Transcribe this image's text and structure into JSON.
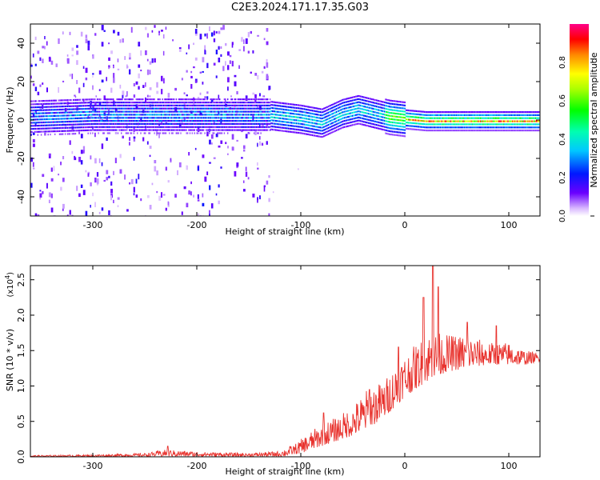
{
  "title": "C2E3.2024.171.17.35.G03",
  "chart_data": [
    {
      "type": "heatmap",
      "xlabel": "Height of straight line (km)",
      "ylabel": "Frequency (Hz)",
      "xlim": [
        -360,
        130
      ],
      "ylim": [
        -50,
        50
      ],
      "xticks": [
        -300,
        -200,
        -100,
        0,
        100
      ],
      "yticks": [
        -40,
        -20,
        0,
        20,
        40
      ],
      "ridge": [
        [
          -360,
          2
        ],
        [
          -300,
          3
        ],
        [
          -250,
          3
        ],
        [
          -200,
          3
        ],
        [
          -150,
          3
        ],
        [
          -130,
          3
        ],
        [
          -115,
          2
        ],
        [
          -100,
          1
        ],
        [
          -90,
          0
        ],
        [
          -80,
          -1
        ],
        [
          -60,
          4
        ],
        [
          -45,
          6
        ],
        [
          -30,
          4
        ],
        [
          -15,
          2
        ],
        [
          0,
          1
        ],
        [
          20,
          0
        ],
        [
          50,
          0
        ],
        [
          80,
          0
        ],
        [
          100,
          0
        ],
        [
          130,
          0
        ]
      ],
      "colorbar": {
        "label": "Normalized spectral amplitude",
        "range": [
          0.0,
          1.0
        ],
        "ticks": [
          "0.0",
          "0.2",
          "0.4",
          "0.6",
          "0.8"
        ],
        "ticks_values": [
          0.0,
          0.2,
          0.4,
          0.6,
          0.8
        ]
      }
    },
    {
      "type": "line",
      "xlabel": "Height of straight line (km)",
      "ylabel": "SNR (10 * v/v)",
      "yscale_label": "(x10",
      "yscale_exp": "4",
      "xlim": [
        -360,
        130
      ],
      "ylim": [
        0.0,
        2.7
      ],
      "xticks": [
        -300,
        -200,
        -100,
        0,
        100
      ],
      "yticks": [
        "0.0",
        "0.5",
        "1.0",
        "1.5",
        "2.0",
        "2.5"
      ],
      "yticks_values": [
        0.0,
        0.5,
        1.0,
        1.5,
        2.0,
        2.5
      ],
      "series": [
        {
          "color": "#e8322d",
          "envelope": [
            [
              -360,
              0.02
            ],
            [
              -300,
              0.03
            ],
            [
              -250,
              0.05
            ],
            [
              -230,
              0.1
            ],
            [
              -200,
              0.07
            ],
            [
              -150,
              0.05
            ],
            [
              -120,
              0.08
            ],
            [
              -105,
              0.18
            ],
            [
              -90,
              0.35
            ],
            [
              -80,
              0.45
            ],
            [
              -65,
              0.55
            ],
            [
              -50,
              0.7
            ],
            [
              -35,
              0.95
            ],
            [
              -20,
              1.05
            ],
            [
              -5,
              1.35
            ],
            [
              10,
              1.55
            ],
            [
              25,
              1.75
            ],
            [
              40,
              1.7
            ],
            [
              60,
              1.7
            ],
            [
              80,
              1.6
            ],
            [
              100,
              1.6
            ],
            [
              115,
              1.5
            ],
            [
              130,
              1.45
            ]
          ],
          "baseline": [
            [
              -360,
              0.0
            ],
            [
              -120,
              0.0
            ],
            [
              -100,
              0.05
            ],
            [
              -80,
              0.15
            ],
            [
              -60,
              0.25
            ],
            [
              -40,
              0.35
            ],
            [
              -20,
              0.55
            ],
            [
              0,
              0.85
            ],
            [
              20,
              1.05
            ],
            [
              40,
              1.2
            ],
            [
              60,
              1.25
            ],
            [
              80,
              1.3
            ],
            [
              100,
              1.3
            ],
            [
              115,
              1.3
            ],
            [
              130,
              1.35
            ]
          ],
          "peaks": [
            [
              -228,
              0.15
            ],
            [
              -78,
              0.62
            ],
            [
              -34,
              0.95
            ],
            [
              -6,
              1.55
            ],
            [
              18,
              2.25
            ],
            [
              27,
              2.7
            ],
            [
              32,
              2.4
            ],
            [
              60,
              1.9
            ],
            [
              88,
              1.85
            ]
          ]
        }
      ]
    }
  ]
}
